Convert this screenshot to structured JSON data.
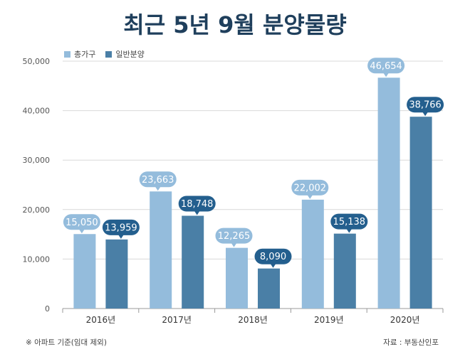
{
  "chart_data": {
    "type": "bar",
    "title": "최근 5년 9월 분양물량",
    "categories": [
      "2016년",
      "2017년",
      "2018년",
      "2019년",
      "2020년"
    ],
    "series": [
      {
        "name": "총가구",
        "color": "#94bcdc",
        "values": [
          15050,
          23663,
          12265,
          22002,
          46654
        ],
        "labels": [
          "15,050",
          "23,663",
          "12,265",
          "22,002",
          "46,654"
        ]
      },
      {
        "name": "일반분양",
        "color": "#4a7fa6",
        "values": [
          13959,
          18748,
          8090,
          15138,
          38766
        ],
        "labels": [
          "13,959",
          "18,748",
          "8,090",
          "15,138",
          "38,766"
        ]
      }
    ],
    "ylim": [
      0,
      50000
    ],
    "yticks": [
      0,
      10000,
      20000,
      30000,
      40000,
      50000
    ],
    "ytick_labels": [
      "0",
      "10,000",
      "20,000",
      "30,000",
      "40,000",
      "50,000"
    ],
    "grid": true,
    "label_color": "#245f8e",
    "legend_position": "top-left"
  },
  "notes": {
    "left": "※ 아파트 기준(임대 제외)",
    "right": "자료 : 부동산인포"
  }
}
